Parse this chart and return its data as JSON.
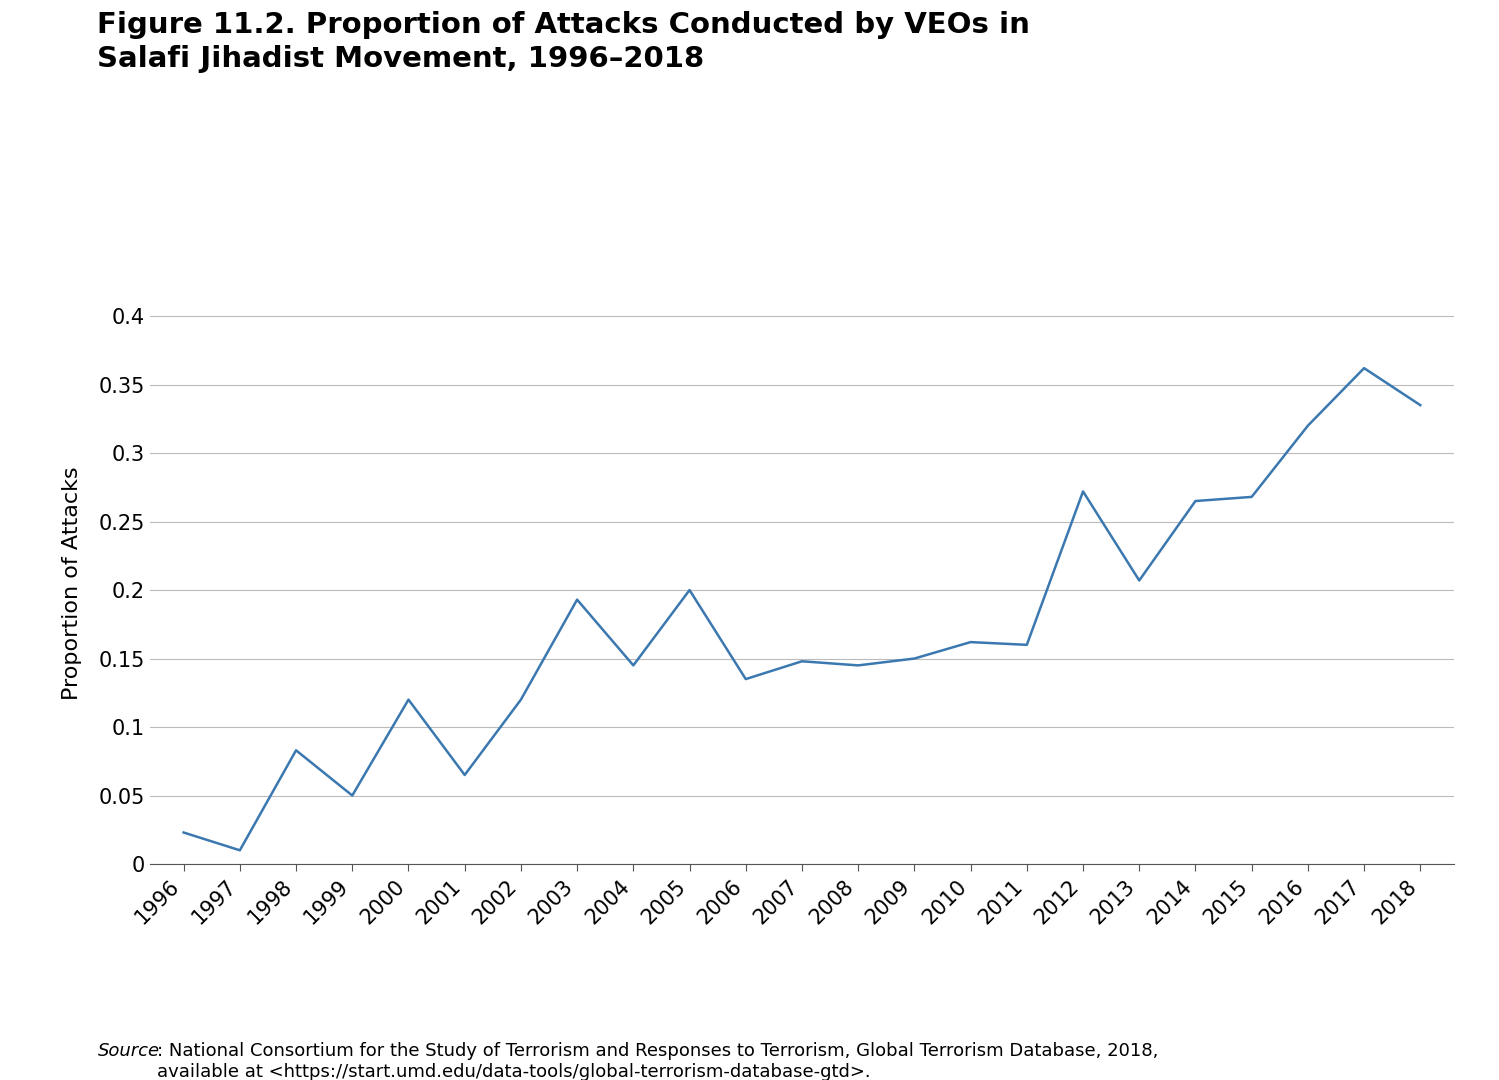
{
  "title_line1": "Figure 11.2. Proportion of Attacks Conducted by VEOs in",
  "title_line2": "Salafi Jihadist Movement, 1996–2018",
  "ylabel": "Proportion of Attacks",
  "source_italic": "Source",
  "source_rest": ": National Consortium for the Study of Terrorism and Responses to Terrorism, Global Terrorism Database, 2018,\navailable at <https://start.umd.edu/data-tools/global-terrorism-database-gtd>.",
  "years": [
    1996,
    1997,
    1998,
    1999,
    2000,
    2001,
    2002,
    2003,
    2004,
    2005,
    2006,
    2007,
    2008,
    2009,
    2010,
    2011,
    2012,
    2013,
    2014,
    2015,
    2016,
    2017,
    2018
  ],
  "values": [
    0.023,
    0.01,
    0.083,
    0.05,
    0.12,
    0.065,
    0.12,
    0.193,
    0.145,
    0.2,
    0.135,
    0.148,
    0.145,
    0.15,
    0.162,
    0.16,
    0.272,
    0.207,
    0.265,
    0.268,
    0.32,
    0.362,
    0.335
  ],
  "line_color": "#3B78B0",
  "line_width": 1.8,
  "ylim": [
    0,
    0.41
  ],
  "yticks": [
    0,
    0.05,
    0.1,
    0.15,
    0.2,
    0.25,
    0.3,
    0.35,
    0.4
  ],
  "ytick_labels": [
    "0",
    "0.05",
    "0.1",
    "0.15",
    "0.2",
    "0.25",
    "0.3",
    "0.35",
    "0.4"
  ],
  "background_color": "#ffffff",
  "grid_color": "#bbbbbb",
  "title_fontsize": 21,
  "label_fontsize": 16,
  "tick_fontsize": 15,
  "source_fontsize": 13
}
